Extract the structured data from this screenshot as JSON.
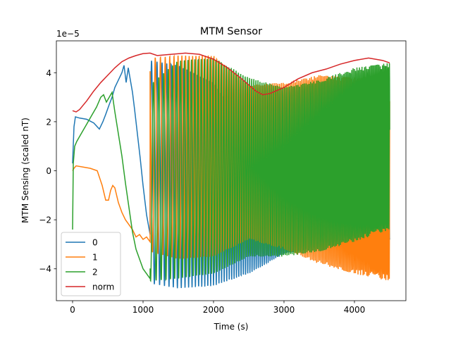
{
  "chart_data": {
    "type": "line",
    "title": "MTM Sensor",
    "xlabel": "Time (s)",
    "ylabel": "MTM Sensing (scaled nT)",
    "y_offset_label": "1e−5",
    "xlim": [
      -230,
      4730
    ],
    "ylim": [
      -5.3,
      5.3
    ],
    "x_ticks": [
      0,
      1000,
      2000,
      3000,
      4000
    ],
    "x_tick_labels": [
      "0",
      "1000",
      "2000",
      "3000",
      "4000"
    ],
    "y_ticks": [
      -4,
      -2,
      0,
      2,
      4
    ],
    "y_tick_labels": [
      "−4",
      "−2",
      "0",
      "2",
      "4"
    ],
    "grid": false,
    "legend_position": "lower-left",
    "colors": {
      "0": "#1f77b4",
      "1": "#ff7f0e",
      "2": "#2ca02c",
      "norm": "#d62728"
    },
    "series": [
      {
        "name": "0",
        "color": "#1f77b4",
        "description": "smooth segment then oscillation with envelope",
        "smooth": [
          [
            0,
            0.3
          ],
          [
            20,
            1.8
          ],
          [
            40,
            2.2
          ],
          [
            100,
            2.15
          ],
          [
            200,
            2.1
          ],
          [
            300,
            1.95
          ],
          [
            380,
            1.7
          ],
          [
            430,
            2.0
          ],
          [
            470,
            2.3
          ],
          [
            520,
            2.7
          ],
          [
            560,
            3.0
          ],
          [
            600,
            3.4
          ],
          [
            650,
            3.7
          ],
          [
            700,
            4.0
          ],
          [
            730,
            4.3
          ],
          [
            760,
            3.6
          ],
          [
            790,
            4.2
          ],
          [
            820,
            3.7
          ],
          [
            850,
            3.2
          ],
          [
            880,
            2.5
          ],
          [
            920,
            1.5
          ],
          [
            960,
            0.5
          ],
          [
            1000,
            -0.6
          ],
          [
            1050,
            -1.8
          ],
          [
            1100,
            -2.6
          ]
        ],
        "osc": {
          "start": 1100,
          "end": 4500,
          "env_upper": [
            [
              1100,
              4.5
            ],
            [
              1500,
              4.3
            ],
            [
              2000,
              3.6
            ],
            [
              2500,
              1.5
            ],
            [
              3000,
              -0.3
            ],
            [
              3500,
              -0.6
            ],
            [
              4000,
              -0.3
            ],
            [
              4500,
              1.0
            ]
          ],
          "env_lower": [
            [
              1100,
              -4.6
            ],
            [
              1500,
              -4.8
            ],
            [
              2000,
              -4.7
            ],
            [
              2500,
              -4.2
            ],
            [
              3000,
              -3.4
            ],
            [
              3500,
              -3.1
            ],
            [
              4000,
              -3.0
            ],
            [
              4500,
              -2.9
            ]
          ]
        }
      },
      {
        "name": "1",
        "color": "#ff7f0e",
        "smooth": [
          [
            0,
            0
          ],
          [
            20,
            0.1
          ],
          [
            50,
            0.2
          ],
          [
            150,
            0.15
          ],
          [
            250,
            0.1
          ],
          [
            350,
            0.0
          ],
          [
            420,
            -0.6
          ],
          [
            470,
            -1.2
          ],
          [
            510,
            -1.2
          ],
          [
            540,
            -0.8
          ],
          [
            570,
            -0.6
          ],
          [
            600,
            -0.7
          ],
          [
            650,
            -1.3
          ],
          [
            700,
            -1.7
          ],
          [
            750,
            -2.0
          ],
          [
            800,
            -2.2
          ],
          [
            850,
            -2.4
          ],
          [
            900,
            -2.7
          ],
          [
            950,
            -2.6
          ],
          [
            1000,
            -2.8
          ],
          [
            1050,
            -2.7
          ],
          [
            1100,
            -2.9
          ]
        ],
        "osc": {
          "start": 1100,
          "end": 4500,
          "env_upper": [
            [
              1100,
              4.6
            ],
            [
              1500,
              4.7
            ],
            [
              2000,
              4.7
            ],
            [
              2500,
              3.5
            ],
            [
              3000,
              3.6
            ],
            [
              3500,
              3.9
            ],
            [
              4000,
              3.8
            ],
            [
              4500,
              3.9
            ]
          ],
          "env_lower": [
            [
              1100,
              -3.3
            ],
            [
              1500,
              -3.6
            ],
            [
              2000,
              -3.5
            ],
            [
              2500,
              -2.8
            ],
            [
              3000,
              -3.2
            ],
            [
              3500,
              -3.8
            ],
            [
              4000,
              -4.2
            ],
            [
              4500,
              -4.5
            ]
          ]
        }
      },
      {
        "name": "2",
        "color": "#2ca02c",
        "smooth": [
          [
            0,
            -2.4
          ],
          [
            10,
            0.3
          ],
          [
            30,
            1.0
          ],
          [
            60,
            1.2
          ],
          [
            120,
            1.5
          ],
          [
            200,
            1.9
          ],
          [
            280,
            2.3
          ],
          [
            340,
            2.6
          ],
          [
            400,
            3.0
          ],
          [
            440,
            3.1
          ],
          [
            480,
            2.8
          ],
          [
            520,
            3.0
          ],
          [
            560,
            3.2
          ],
          [
            600,
            2.4
          ],
          [
            650,
            1.5
          ],
          [
            700,
            0.6
          ],
          [
            750,
            -0.5
          ],
          [
            800,
            -1.5
          ],
          [
            850,
            -2.5
          ],
          [
            900,
            -3.2
          ],
          [
            950,
            -3.6
          ],
          [
            1000,
            -4.0
          ],
          [
            1050,
            -4.2
          ],
          [
            1100,
            -4.4
          ]
        ],
        "osc": {
          "start": 1100,
          "end": 4500,
          "env_upper": [
            [
              1100,
              3.5
            ],
            [
              1500,
              4.5
            ],
            [
              2000,
              4.6
            ],
            [
              2500,
              3.8
            ],
            [
              3000,
              3.4
            ],
            [
              3500,
              3.7
            ],
            [
              4000,
              4.2
            ],
            [
              4500,
              4.4
            ]
          ],
          "env_lower": [
            [
              1100,
              -4.5
            ],
            [
              1500,
              -4.4
            ],
            [
              2000,
              -4.2
            ],
            [
              2500,
              -3.5
            ],
            [
              3000,
              -3.5
            ],
            [
              3500,
              -3.3
            ],
            [
              4000,
              -2.9
            ],
            [
              4500,
              -2.4
            ]
          ]
        }
      },
      {
        "name": "norm",
        "color": "#d62728",
        "points": [
          [
            0,
            2.45
          ],
          [
            50,
            2.4
          ],
          [
            100,
            2.5
          ],
          [
            200,
            2.85
          ],
          [
            300,
            3.25
          ],
          [
            400,
            3.6
          ],
          [
            500,
            3.9
          ],
          [
            600,
            4.2
          ],
          [
            700,
            4.45
          ],
          [
            800,
            4.6
          ],
          [
            900,
            4.7
          ],
          [
            1000,
            4.78
          ],
          [
            1100,
            4.8
          ],
          [
            1200,
            4.7
          ],
          [
            1400,
            4.75
          ],
          [
            1600,
            4.8
          ],
          [
            1800,
            4.75
          ],
          [
            2000,
            4.55
          ],
          [
            2200,
            4.2
          ],
          [
            2400,
            3.75
          ],
          [
            2600,
            3.25
          ],
          [
            2700,
            3.1
          ],
          [
            2800,
            3.15
          ],
          [
            3000,
            3.4
          ],
          [
            3200,
            3.75
          ],
          [
            3400,
            4.0
          ],
          [
            3600,
            4.15
          ],
          [
            3800,
            4.35
          ],
          [
            4000,
            4.5
          ],
          [
            4200,
            4.6
          ],
          [
            4400,
            4.5
          ],
          [
            4500,
            4.4
          ]
        ]
      }
    ]
  }
}
